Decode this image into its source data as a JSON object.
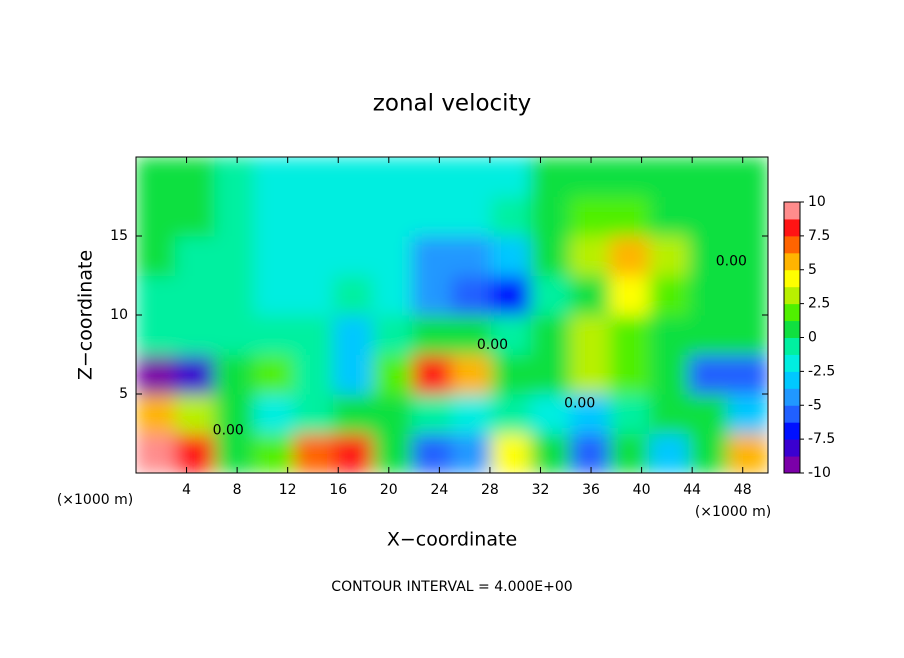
{
  "chart_data": {
    "type": "contour",
    "title": "zonal velocity",
    "xlabel": "X−coordinate",
    "ylabel": "Z−coordinate",
    "xlabel_unit": "(×1000 m)",
    "ylabel_unit": "(×1000 m)",
    "footnote": "CONTOUR INTERVAL = 4.000E+00",
    "xlim": [
      0,
      50
    ],
    "ylim": [
      0,
      20
    ],
    "xticks": [
      4,
      8,
      12,
      16,
      20,
      24,
      28,
      32,
      36,
      40,
      44,
      48
    ],
    "yticks": [
      5,
      10,
      15
    ],
    "z": [
      [
        9,
        8,
        1,
        2,
        7,
        8,
        0,
        -6,
        -4,
        4,
        0,
        -6,
        0,
        -3,
        1,
        6
      ],
      [
        5,
        3,
        0,
        -2,
        -1,
        1,
        0,
        -1,
        -2,
        -1,
        -2,
        -3,
        -1,
        0,
        1,
        -3
      ],
      [
        -9,
        -8,
        0,
        2,
        -1,
        -3,
        2,
        8,
        6,
        1,
        0,
        3,
        2,
        0,
        -6,
        -6
      ],
      [
        -1,
        -1,
        -1,
        -1,
        -1,
        -3,
        -1,
        0,
        1,
        -1,
        0,
        3,
        2,
        0,
        1,
        0
      ],
      [
        -1,
        -1,
        -1,
        -2,
        -2,
        -1,
        -2,
        -4,
        -6,
        -7,
        -1,
        1,
        4,
        2,
        1,
        1
      ],
      [
        0,
        -1,
        -1,
        -2,
        -2,
        -2,
        -2,
        -4,
        -5,
        -3,
        0,
        3,
        5,
        3,
        0,
        1
      ],
      [
        0,
        0,
        -1,
        -2,
        -2,
        -2,
        -2,
        -2,
        -2,
        -1,
        0,
        2,
        2,
        1,
        0,
        0
      ],
      [
        0,
        0,
        -1,
        -2,
        -2,
        -2,
        -2,
        -2,
        -2,
        -2,
        0,
        1,
        1,
        0,
        0,
        0
      ]
    ],
    "contour_labels": [
      {
        "x": 7.3,
        "y": 2.7,
        "label": "0.00"
      },
      {
        "x": 28.2,
        "y": 8.1,
        "label": "0.00"
      },
      {
        "x": 35.1,
        "y": 4.4,
        "label": "0.00"
      },
      {
        "x": 47.1,
        "y": 13.4,
        "label": "0.00"
      }
    ],
    "colorbar": {
      "lim": [
        -10,
        10
      ],
      "ticks": [
        -10,
        -7.5,
        -5,
        -2.5,
        0,
        2.5,
        5,
        7.5,
        10
      ],
      "colors": [
        "#7b00a8",
        "#3a00d0",
        "#0010ff",
        "#2060ff",
        "#2098ff",
        "#00c8ff",
        "#00eee0",
        "#00f0a0",
        "#10e040",
        "#50f000",
        "#b8f000",
        "#ffff00",
        "#ffb400",
        "#ff6400",
        "#ff1414",
        "#ff8c8c"
      ]
    }
  }
}
